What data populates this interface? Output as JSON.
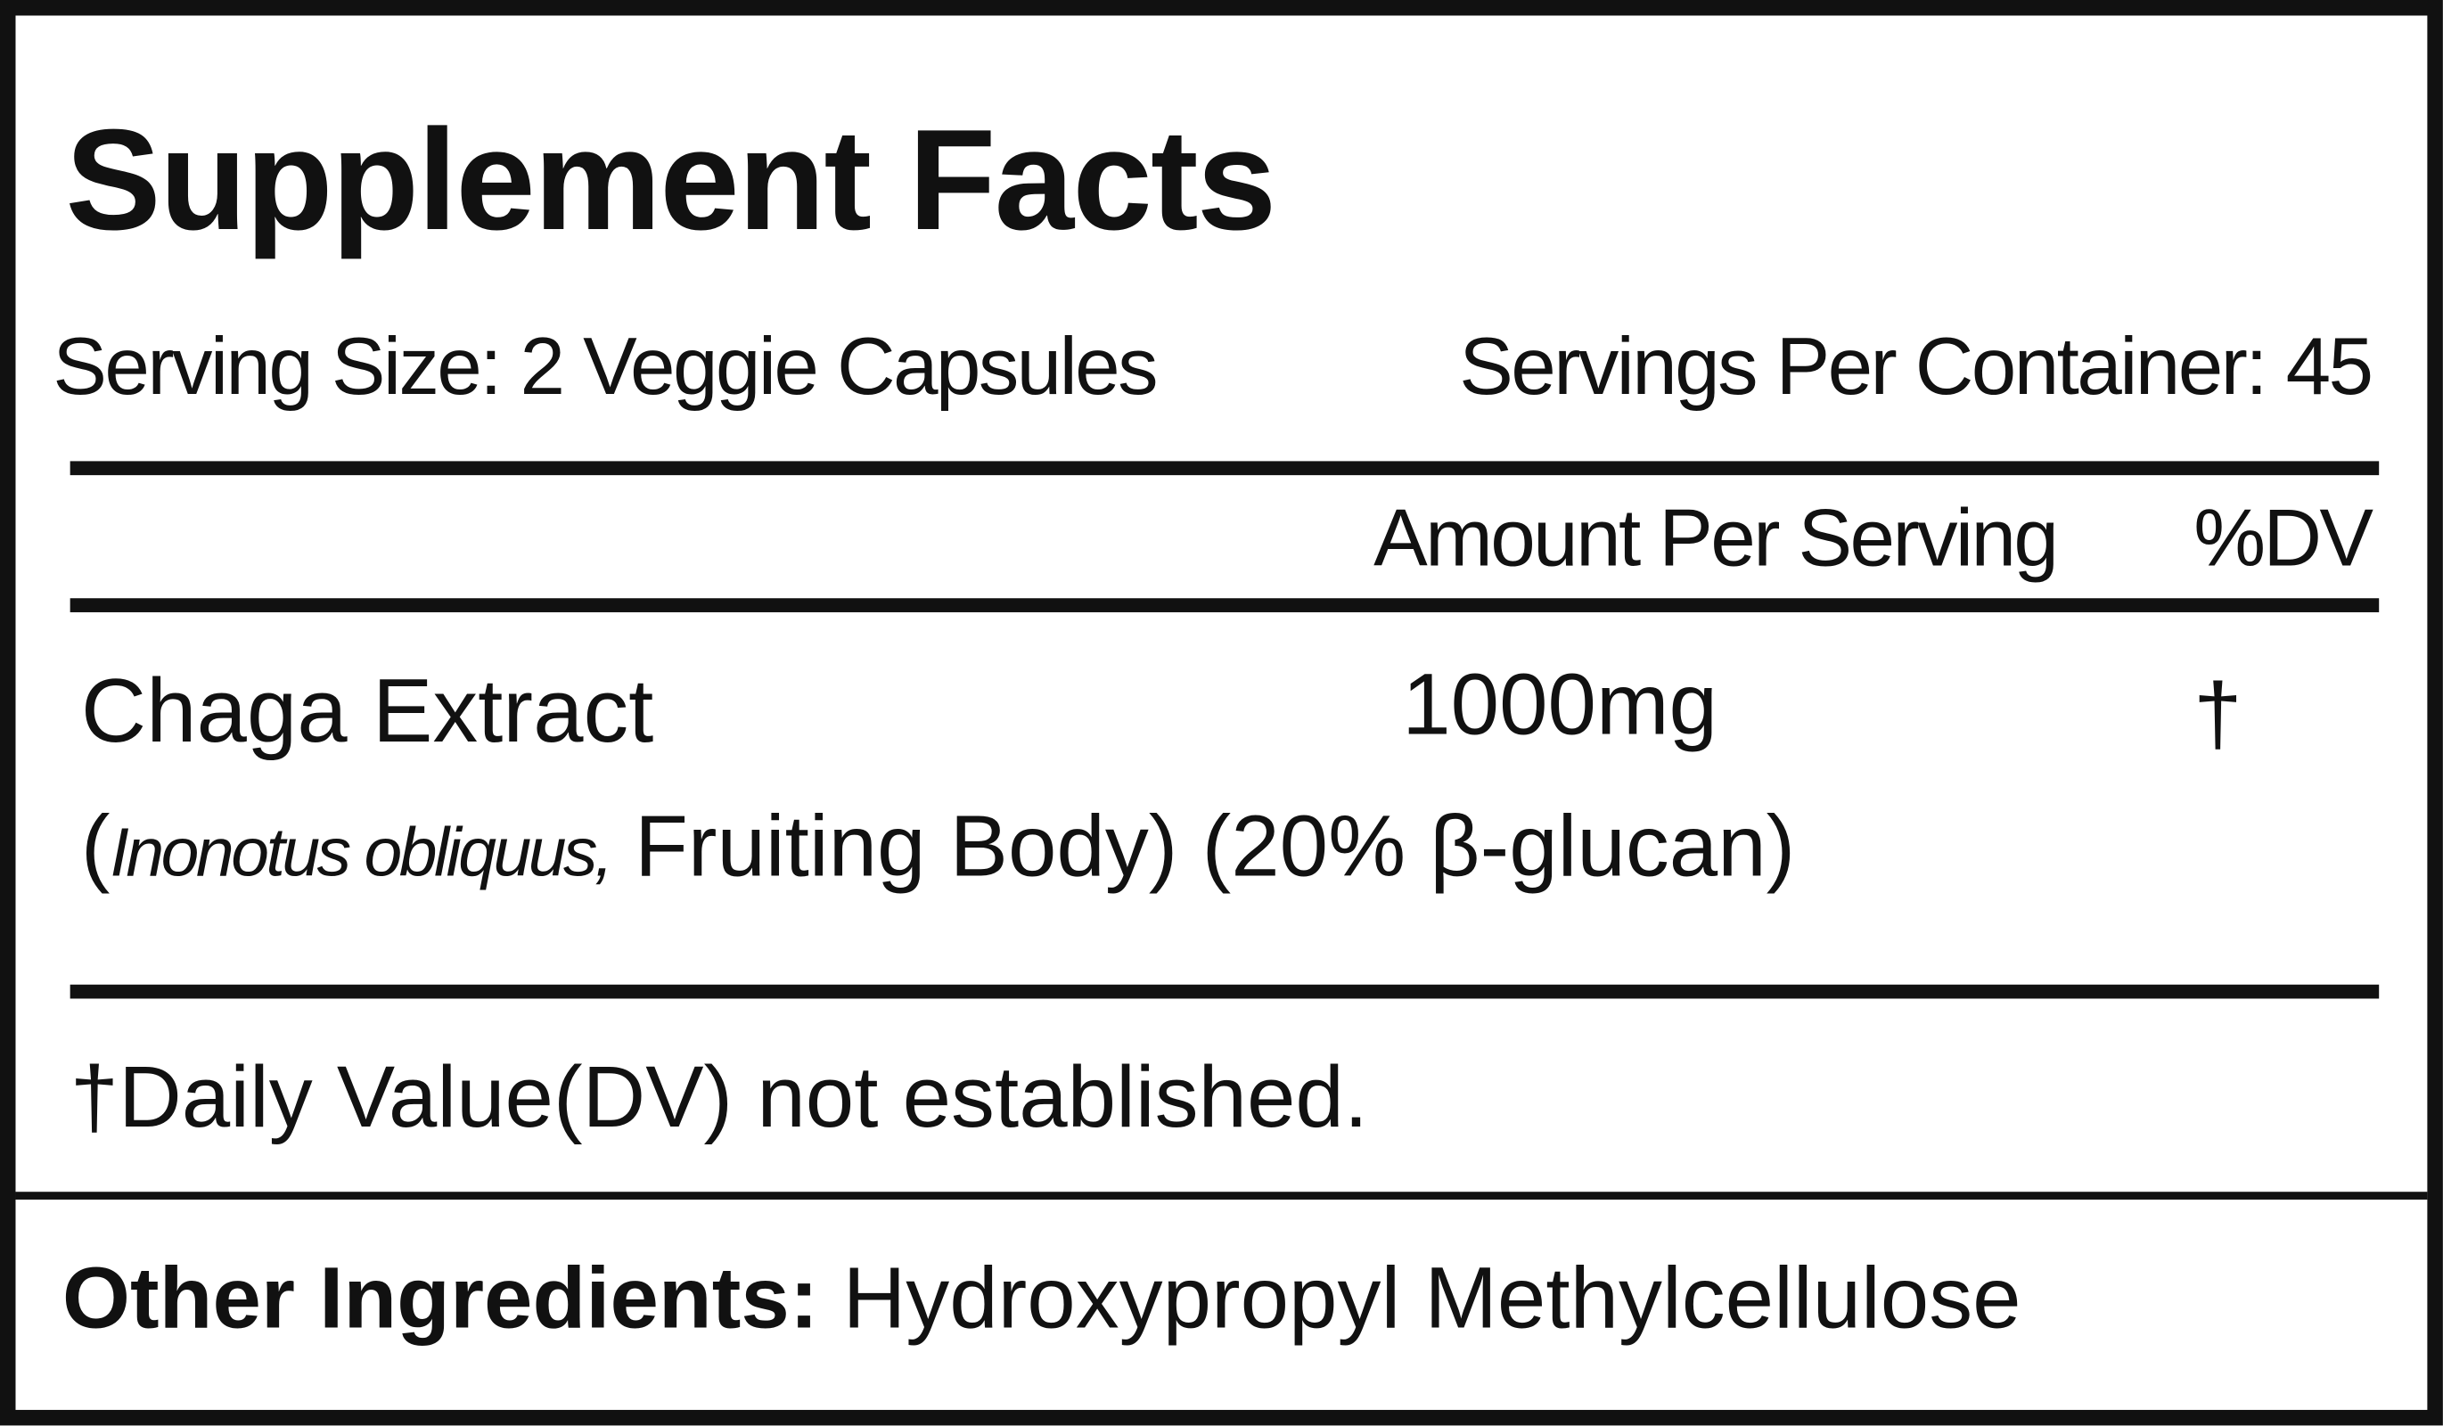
{
  "title": "Supplement Facts",
  "serving_size": "Serving Size: 2 Veggie Capsules",
  "servings_per_container": "Servings Per Container: 45",
  "headers": {
    "amount": "Amount Per Serving",
    "dv": "%DV"
  },
  "ingredients": [
    {
      "name": "Chaga Extract",
      "amount": "1000mg",
      "dv": "†",
      "detail_open": "(",
      "species": "Inonotus obliquus,",
      "detail_rest": " Fruiting Body) (20% β-glucan)"
    }
  ],
  "footnote": "†Daily Value(DV) not established.",
  "other_ingredients": {
    "label": "Other Ingredients:",
    "value": " Hydroxypropyl Methylcellulose"
  }
}
